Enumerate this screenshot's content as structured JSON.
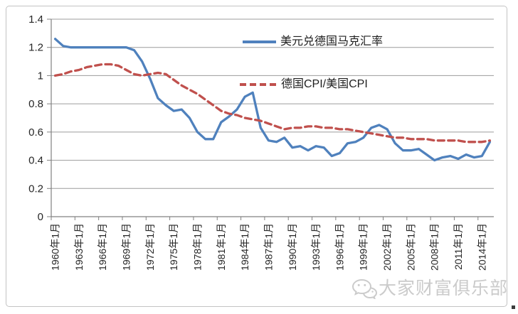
{
  "chart_data": {
    "type": "line",
    "title": "",
    "xlabel": "",
    "ylabel": "",
    "ylim": [
      0,
      1.4
    ],
    "grid": true,
    "legend_position": "inside-upper-middle",
    "y_tick_labels": [
      "0",
      "0.2",
      "0.4",
      "0.6",
      "0.8",
      "1",
      "1.2",
      "1.4"
    ],
    "y_ticks": [
      0,
      0.2,
      0.4,
      0.6,
      0.8,
      1.0,
      1.2,
      1.4
    ],
    "x_years": [
      1960,
      1961,
      1962,
      1963,
      1964,
      1965,
      1966,
      1967,
      1968,
      1969,
      1970,
      1971,
      1972,
      1973,
      1974,
      1975,
      1976,
      1977,
      1978,
      1979,
      1980,
      1981,
      1982,
      1983,
      1984,
      1985,
      1986,
      1987,
      1988,
      1989,
      1990,
      1991,
      1992,
      1993,
      1994,
      1995,
      1996,
      1997,
      1998,
      1999,
      2000,
      2001,
      2002,
      2003,
      2004,
      2005,
      2006,
      2007,
      2008,
      2009,
      2010,
      2011,
      2012,
      2013,
      2014,
      2015
    ],
    "x_tick_labels": [
      "1960年1月",
      "1963年1月",
      "1966年1月",
      "1969年1月",
      "1972年1月",
      "1975年1月",
      "1978年1月",
      "1981年1月",
      "1984年1月",
      "1987年1月",
      "1990年1月",
      "1993年1月",
      "1996年1月",
      "1999年1月",
      "2002年1月",
      "2005年1月",
      "2008年1月",
      "2011年1月",
      "2014年1月"
    ],
    "x_tick_interval_years": 3,
    "series": [
      {
        "name": "美元兑德国马克汇率",
        "color": "#4F81BD",
        "style": "solid",
        "values": [
          1.26,
          1.21,
          1.2,
          1.2,
          1.2,
          1.2,
          1.2,
          1.2,
          1.2,
          1.2,
          1.18,
          1.1,
          0.98,
          0.84,
          0.79,
          0.75,
          0.76,
          0.7,
          0.6,
          0.55,
          0.55,
          0.67,
          0.71,
          0.76,
          0.85,
          0.88,
          0.63,
          0.54,
          0.53,
          0.56,
          0.49,
          0.5,
          0.47,
          0.5,
          0.49,
          0.43,
          0.45,
          0.52,
          0.53,
          0.56,
          0.63,
          0.65,
          0.62,
          0.52,
          0.47,
          0.47,
          0.48,
          0.44,
          0.4,
          0.42,
          0.43,
          0.41,
          0.44,
          0.42,
          0.43,
          0.53
        ]
      },
      {
        "name": "德国CPI/美国CPI",
        "color": "#C0504D",
        "style": "dashed",
        "values": [
          1.0,
          1.01,
          1.03,
          1.04,
          1.06,
          1.07,
          1.08,
          1.08,
          1.07,
          1.04,
          1.01,
          1.0,
          1.01,
          1.02,
          1.01,
          0.97,
          0.93,
          0.9,
          0.87,
          0.83,
          0.79,
          0.75,
          0.73,
          0.72,
          0.7,
          0.69,
          0.68,
          0.66,
          0.64,
          0.62,
          0.63,
          0.63,
          0.64,
          0.64,
          0.63,
          0.63,
          0.62,
          0.62,
          0.61,
          0.6,
          0.59,
          0.58,
          0.57,
          0.56,
          0.56,
          0.55,
          0.55,
          0.55,
          0.54,
          0.54,
          0.54,
          0.54,
          0.53,
          0.53,
          0.53,
          0.54
        ]
      }
    ],
    "colors": {
      "gridline": "#9c9c9c",
      "axis": "#808080",
      "tick_label": "#262626",
      "series1": "#4F81BD",
      "series2": "#C0504D"
    }
  },
  "legend": {
    "entry1": "美元兑德国马克汇率",
    "entry2": "德国CPI/美国CPI"
  },
  "watermark": {
    "icon": "wechat-icon",
    "text": "大家财富俱乐部",
    "color": "#c9c9c9"
  }
}
